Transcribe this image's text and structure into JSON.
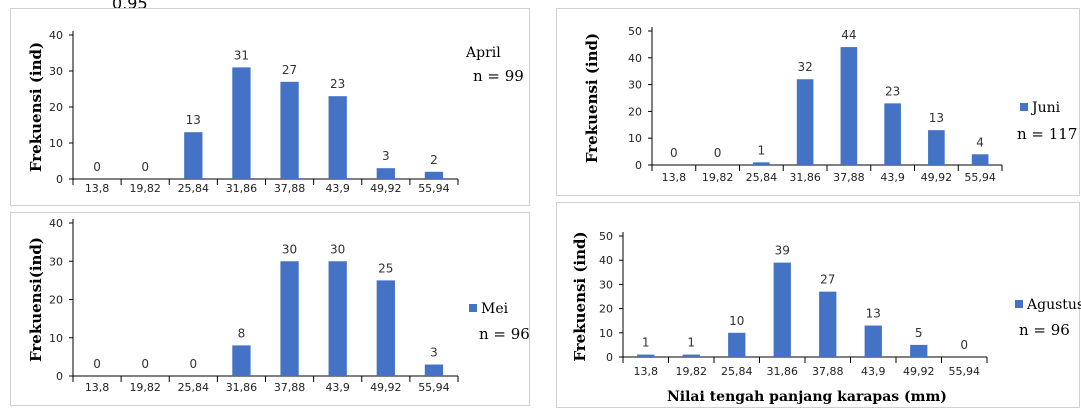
{
  "colors": {
    "bar": "#4472c4",
    "axis": "#000000"
  },
  "corner_fragment": "0,95",
  "x_title": "Nilai tengah panjang karapas (mm)",
  "chart_data": [
    {
      "type": "bar",
      "legend": "April",
      "n_label": "n = 99",
      "ylabel": "Frekuensi (ind)",
      "ylim": [
        0,
        40
      ],
      "yticks": [
        0,
        10,
        20,
        30,
        40
      ],
      "categories": [
        "13,8",
        "19,82",
        "25,84",
        "31,86",
        "37,88",
        "43,9",
        "49,92",
        "55,94"
      ],
      "values": [
        0,
        0,
        13,
        31,
        27,
        23,
        3,
        2
      ],
      "legend_marker": false
    },
    {
      "type": "bar",
      "legend": "Juni",
      "n_label": "n = 117",
      "ylabel": "Frekuensi (ind)",
      "ylim": [
        0,
        50
      ],
      "yticks": [
        0,
        10,
        20,
        30,
        40,
        50
      ],
      "categories": [
        "13,8",
        "19,82",
        "25,84",
        "31,86",
        "37,88",
        "43,9",
        "49,92",
        "55,94"
      ],
      "values": [
        0,
        0,
        1,
        32,
        44,
        23,
        13,
        4
      ],
      "legend_marker": true
    },
    {
      "type": "bar",
      "legend": "Mei",
      "n_label": "n = 96",
      "ylabel": "Frekuensi(ind)",
      "ylim": [
        0,
        40
      ],
      "yticks": [
        0,
        10,
        20,
        30,
        40
      ],
      "categories": [
        "13,8",
        "19,82",
        "25,84",
        "31,86",
        "37,88",
        "43,9",
        "49,92",
        "55,94"
      ],
      "values": [
        0,
        0,
        0,
        8,
        30,
        30,
        25,
        3
      ],
      "legend_marker": true
    },
    {
      "type": "bar",
      "legend": "Agustus",
      "n_label": "n = 96",
      "ylabel": "Frekuensi (ind)",
      "ylim": [
        0,
        50
      ],
      "yticks": [
        0,
        10,
        20,
        30,
        40,
        50
      ],
      "categories": [
        "13,8",
        "19,82",
        "25,84",
        "31,86",
        "37,88",
        "43,9",
        "49,92",
        "55,94"
      ],
      "values": [
        1,
        1,
        10,
        39,
        27,
        13,
        5,
        0
      ],
      "legend_marker": true
    }
  ]
}
